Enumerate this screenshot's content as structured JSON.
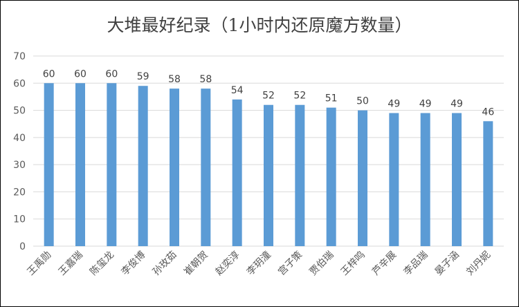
{
  "chart_data": {
    "type": "bar",
    "title": "大堆最好纪录（1小时内还原魔方数量）",
    "categories": [
      "王禹勋",
      "王嘉瑞",
      "陈玺龙",
      "李俊博",
      "孙玫茹",
      "崔朝贺",
      "赵奕淳",
      "李玥潼",
      "宫子策",
      "贾伯瑞",
      "王梓鸣",
      "芦辛展",
      "李品瑞",
      "晏子涵",
      "刘丹妮"
    ],
    "values": [
      60,
      60,
      60,
      59,
      58,
      58,
      54,
      52,
      52,
      51,
      50,
      49,
      49,
      49,
      46
    ],
    "xlabel": "",
    "ylabel": "",
    "ylim": [
      0,
      70
    ],
    "yticks": [
      0,
      10,
      20,
      30,
      40,
      50,
      60,
      70
    ],
    "grid": true,
    "legend": "none",
    "colors": {
      "bar": "#5B9BD5",
      "grid": "#D9D9D9"
    }
  }
}
